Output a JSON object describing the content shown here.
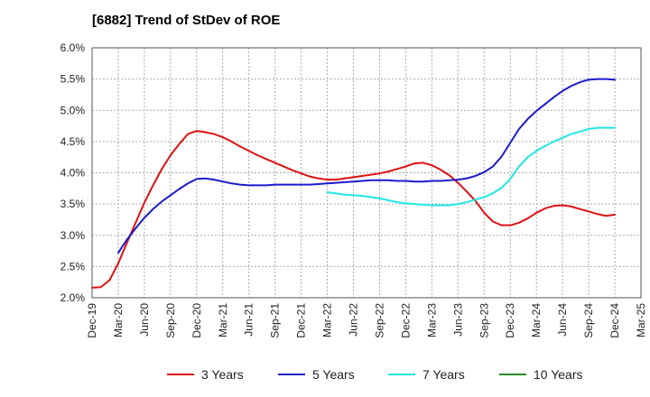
{
  "chart_data": {
    "type": "line",
    "title": "[6882]  Trend of StDev of ROE",
    "xlabel": "",
    "ylabel": "",
    "x_ticks": [
      "Dec-19",
      "Mar-20",
      "Jun-20",
      "Sep-20",
      "Dec-20",
      "Mar-21",
      "Jun-21",
      "Sep-21",
      "Dec-21",
      "Mar-22",
      "Jun-22",
      "Sep-22",
      "Dec-22",
      "Mar-23",
      "Jun-23",
      "Sep-23",
      "Dec-23",
      "Mar-24",
      "Jun-24",
      "Sep-24",
      "Dec-24",
      "Mar-25"
    ],
    "y_ticks": [
      "2.0%",
      "2.5%",
      "3.0%",
      "3.5%",
      "4.0%",
      "4.5%",
      "5.0%",
      "5.5%",
      "6.0%"
    ],
    "ylim": [
      2.0,
      6.0
    ],
    "y_unit": "%",
    "grid": true,
    "legend_position": "bottom",
    "series": [
      {
        "name": "3 Years",
        "color": "#dd1111",
        "points": [
          [
            "Dec-19",
            2.16
          ],
          [
            "Jan-20",
            2.17
          ],
          [
            "Feb-20",
            2.28
          ],
          [
            "Mar-20",
            2.55
          ],
          [
            "Apr-20",
            2.88
          ],
          [
            "May-20",
            3.2
          ],
          [
            "Jun-20",
            3.52
          ],
          [
            "Jul-20",
            3.8
          ],
          [
            "Aug-20",
            4.06
          ],
          [
            "Sep-20",
            4.28
          ],
          [
            "Oct-20",
            4.46
          ],
          [
            "Nov-20",
            4.62
          ],
          [
            "Dec-20",
            4.67
          ],
          [
            "Jan-21",
            4.65
          ],
          [
            "Feb-21",
            4.62
          ],
          [
            "Mar-21",
            4.57
          ],
          [
            "Apr-21",
            4.5
          ],
          [
            "May-21",
            4.42
          ],
          [
            "Jun-21",
            4.35
          ],
          [
            "Jul-21",
            4.28
          ],
          [
            "Aug-21",
            4.22
          ],
          [
            "Sep-21",
            4.16
          ],
          [
            "Oct-21",
            4.1
          ],
          [
            "Nov-21",
            4.04
          ],
          [
            "Dec-21",
            3.99
          ],
          [
            "Jan-22",
            3.94
          ],
          [
            "Feb-22",
            3.91
          ],
          [
            "Mar-22",
            3.89
          ],
          [
            "Apr-22",
            3.89
          ],
          [
            "May-22",
            3.91
          ],
          [
            "Jun-22",
            3.93
          ],
          [
            "Jul-22",
            3.95
          ],
          [
            "Aug-22",
            3.97
          ],
          [
            "Sep-22",
            3.99
          ],
          [
            "Oct-22",
            4.02
          ],
          [
            "Nov-22",
            4.06
          ],
          [
            "Dec-22",
            4.1
          ],
          [
            "Jan-23",
            4.15
          ],
          [
            "Feb-23",
            4.16
          ],
          [
            "Mar-23",
            4.12
          ],
          [
            "Apr-23",
            4.05
          ],
          [
            "May-23",
            3.96
          ],
          [
            "Jun-23",
            3.84
          ],
          [
            "Jul-23",
            3.7
          ],
          [
            "Aug-23",
            3.55
          ],
          [
            "Sep-23",
            3.36
          ],
          [
            "Oct-23",
            3.22
          ],
          [
            "Nov-23",
            3.16
          ],
          [
            "Dec-23",
            3.16
          ],
          [
            "Jan-24",
            3.2
          ],
          [
            "Feb-24",
            3.27
          ],
          [
            "Mar-24",
            3.36
          ],
          [
            "Apr-24",
            3.43
          ],
          [
            "May-24",
            3.47
          ],
          [
            "Jun-24",
            3.48
          ],
          [
            "Jul-24",
            3.46
          ],
          [
            "Aug-24",
            3.42
          ],
          [
            "Sep-24",
            3.38
          ],
          [
            "Oct-24",
            3.34
          ],
          [
            "Nov-24",
            3.31
          ],
          [
            "Dec-24",
            3.33
          ]
        ]
      },
      {
        "name": "5 Years",
        "color": "#1a1acc",
        "points": [
          [
            "Mar-20",
            2.72
          ],
          [
            "Apr-20",
            2.93
          ],
          [
            "May-20",
            3.11
          ],
          [
            "Jun-20",
            3.28
          ],
          [
            "Jul-20",
            3.42
          ],
          [
            "Aug-20",
            3.54
          ],
          [
            "Sep-20",
            3.64
          ],
          [
            "Oct-20",
            3.74
          ],
          [
            "Nov-20",
            3.83
          ],
          [
            "Dec-20",
            3.9
          ],
          [
            "Jan-21",
            3.91
          ],
          [
            "Feb-21",
            3.89
          ],
          [
            "Mar-21",
            3.86
          ],
          [
            "Apr-21",
            3.83
          ],
          [
            "May-21",
            3.81
          ],
          [
            "Jun-21",
            3.8
          ],
          [
            "Jul-21",
            3.8
          ],
          [
            "Aug-21",
            3.8
          ],
          [
            "Sep-21",
            3.81
          ],
          [
            "Oct-21",
            3.81
          ],
          [
            "Nov-21",
            3.81
          ],
          [
            "Dec-21",
            3.81
          ],
          [
            "Jan-22",
            3.81
          ],
          [
            "Feb-22",
            3.82
          ],
          [
            "Mar-22",
            3.83
          ],
          [
            "Apr-22",
            3.84
          ],
          [
            "May-22",
            3.85
          ],
          [
            "Jun-22",
            3.86
          ],
          [
            "Jul-22",
            3.87
          ],
          [
            "Aug-22",
            3.88
          ],
          [
            "Sep-22",
            3.88
          ],
          [
            "Oct-22",
            3.88
          ],
          [
            "Nov-22",
            3.87
          ],
          [
            "Dec-22",
            3.87
          ],
          [
            "Jan-23",
            3.86
          ],
          [
            "Feb-23",
            3.86
          ],
          [
            "Mar-23",
            3.87
          ],
          [
            "Apr-23",
            3.87
          ],
          [
            "May-23",
            3.88
          ],
          [
            "Jun-23",
            3.89
          ],
          [
            "Jul-23",
            3.91
          ],
          [
            "Aug-23",
            3.95
          ],
          [
            "Sep-23",
            4.01
          ],
          [
            "Oct-23",
            4.1
          ],
          [
            "Nov-23",
            4.26
          ],
          [
            "Dec-23",
            4.48
          ],
          [
            "Jan-24",
            4.7
          ],
          [
            "Feb-24",
            4.86
          ],
          [
            "Mar-24",
            4.99
          ],
          [
            "Apr-24",
            5.1
          ],
          [
            "May-24",
            5.21
          ],
          [
            "Jun-24",
            5.31
          ],
          [
            "Jul-24",
            5.39
          ],
          [
            "Aug-24",
            5.45
          ],
          [
            "Sep-24",
            5.49
          ],
          [
            "Oct-24",
            5.5
          ],
          [
            "Nov-24",
            5.5
          ],
          [
            "Dec-24",
            5.49
          ]
        ]
      },
      {
        "name": "7 Years",
        "color": "#22e5e5",
        "points": [
          [
            "Mar-22",
            3.69
          ],
          [
            "Apr-22",
            3.67
          ],
          [
            "May-22",
            3.65
          ],
          [
            "Jun-22",
            3.64
          ],
          [
            "Jul-22",
            3.63
          ],
          [
            "Aug-22",
            3.61
          ],
          [
            "Sep-22",
            3.59
          ],
          [
            "Oct-22",
            3.56
          ],
          [
            "Nov-22",
            3.53
          ],
          [
            "Dec-22",
            3.51
          ],
          [
            "Jan-23",
            3.5
          ],
          [
            "Feb-23",
            3.49
          ],
          [
            "Mar-23",
            3.48
          ],
          [
            "Apr-23",
            3.48
          ],
          [
            "May-23",
            3.48
          ],
          [
            "Jun-23",
            3.5
          ],
          [
            "Jul-23",
            3.53
          ],
          [
            "Aug-23",
            3.57
          ],
          [
            "Sep-23",
            3.61
          ],
          [
            "Oct-23",
            3.67
          ],
          [
            "Nov-23",
            3.76
          ],
          [
            "Dec-23",
            3.9
          ],
          [
            "Jan-24",
            4.1
          ],
          [
            "Feb-24",
            4.25
          ],
          [
            "Mar-24",
            4.35
          ],
          [
            "Apr-24",
            4.43
          ],
          [
            "May-24",
            4.5
          ],
          [
            "Jun-24",
            4.56
          ],
          [
            "Jul-24",
            4.62
          ],
          [
            "Aug-24",
            4.66
          ],
          [
            "Sep-24",
            4.7
          ],
          [
            "Oct-24",
            4.72
          ],
          [
            "Nov-24",
            4.72
          ],
          [
            "Dec-24",
            4.72
          ]
        ]
      },
      {
        "name": "10 Years",
        "color": "#228b22",
        "points": []
      }
    ]
  }
}
